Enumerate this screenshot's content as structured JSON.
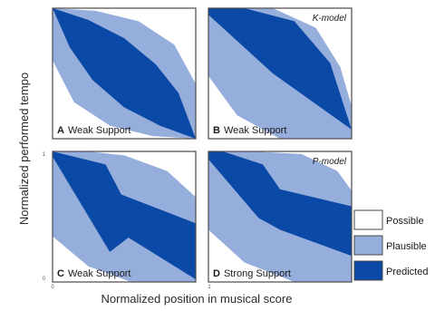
{
  "chart_data": {
    "type": "area",
    "ylabel": "Normalized performed tempo",
    "xlabel": "Normalized position in musical score",
    "xlim": [
      0,
      1
    ],
    "ylim": [
      0,
      1
    ],
    "x_ticks": [
      "0",
      "1"
    ],
    "y_ticks": [
      "1",
      "0"
    ],
    "colors": {
      "possible": "#ffffff",
      "plausible": "#96aedb",
      "predicted": "#0b49a6",
      "frame": "#4a4a4a"
    },
    "legend": {
      "placement": "right",
      "entries": [
        {
          "label": "Possible",
          "color": "#ffffff"
        },
        {
          "label": "Plausible",
          "color": "#96aedb"
        },
        {
          "label": "Predicted",
          "color": "#0b49a6"
        }
      ]
    },
    "panels": [
      {
        "letter": "A",
        "label": "Weak Support",
        "model_tag": "",
        "plausible": [
          [
            0,
            1
          ],
          [
            0.3,
            0.98
          ],
          [
            0.6,
            0.9
          ],
          [
            0.85,
            0.72
          ],
          [
            1,
            0.42
          ],
          [
            1,
            0
          ],
          [
            0.7,
            0.02
          ],
          [
            0.4,
            0.1
          ],
          [
            0.15,
            0.28
          ],
          [
            0,
            0.6
          ]
        ],
        "predicted": [
          [
            0,
            1
          ],
          [
            0.25,
            0.91
          ],
          [
            0.5,
            0.77
          ],
          [
            0.72,
            0.57
          ],
          [
            0.88,
            0.35
          ],
          [
            1,
            0
          ],
          [
            0.75,
            0.1
          ],
          [
            0.5,
            0.24
          ],
          [
            0.28,
            0.45
          ],
          [
            0.12,
            0.7
          ]
        ]
      },
      {
        "letter": "B",
        "label": "Weak Support",
        "model_tag": "K-model",
        "plausible": [
          [
            0,
            1
          ],
          [
            0.45,
            1
          ],
          [
            0.75,
            0.85
          ],
          [
            0.92,
            0.55
          ],
          [
            1,
            0.25
          ],
          [
            1,
            0
          ],
          [
            0.5,
            0
          ],
          [
            0.2,
            0.18
          ],
          [
            0,
            0.48
          ]
        ],
        "predicted": [
          [
            0,
            1
          ],
          [
            0.25,
            1
          ],
          [
            0.6,
            0.9
          ],
          [
            0.85,
            0.58
          ],
          [
            1,
            0.07
          ],
          [
            0.45,
            0.5
          ],
          [
            0,
            0.95
          ]
        ]
      },
      {
        "letter": "C",
        "label": "Weak Support",
        "model_tag": "",
        "plausible": [
          [
            0,
            1
          ],
          [
            0.25,
            1
          ],
          [
            0.5,
            0.97
          ],
          [
            0.8,
            0.85
          ],
          [
            1,
            0.65
          ],
          [
            1,
            0
          ],
          [
            0.55,
            0
          ],
          [
            0.25,
            0.12
          ],
          [
            0,
            0.35
          ]
        ],
        "predicted": [
          [
            0,
            1
          ],
          [
            0.37,
            0.9
          ],
          [
            0.48,
            0.67
          ],
          [
            1,
            0.45
          ],
          [
            1,
            0.02
          ],
          [
            0.53,
            0.34
          ],
          [
            0.4,
            0.23
          ],
          [
            0,
            0.96
          ]
        ]
      },
      {
        "letter": "D",
        "label": "Strong Support",
        "model_tag": "P-model",
        "plausible": [
          [
            0,
            1
          ],
          [
            0.3,
            1
          ],
          [
            0.65,
            0.98
          ],
          [
            0.9,
            0.85
          ],
          [
            1,
            0.7
          ],
          [
            1,
            0
          ],
          [
            0.6,
            0
          ],
          [
            0.25,
            0.15
          ],
          [
            0,
            0.4
          ]
        ],
        "predicted": [
          [
            0,
            1
          ],
          [
            0.1,
            1
          ],
          [
            0.38,
            0.9
          ],
          [
            0.5,
            0.71
          ],
          [
            1,
            0.58
          ],
          [
            1,
            0.2
          ],
          [
            0.5,
            0.4
          ],
          [
            0.35,
            0.49
          ],
          [
            0,
            0.94
          ]
        ]
      }
    ]
  }
}
